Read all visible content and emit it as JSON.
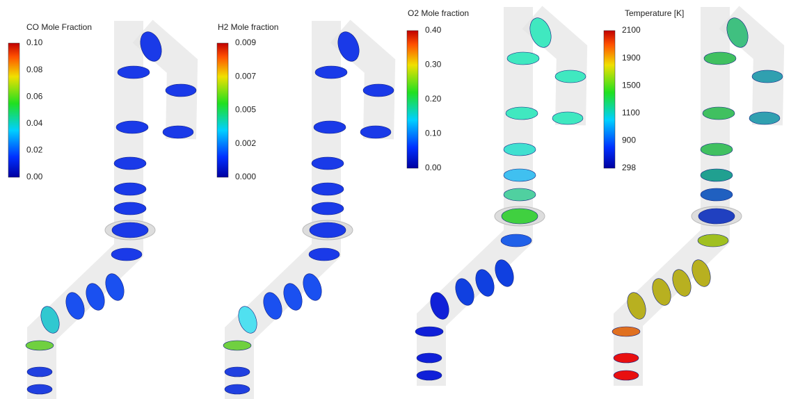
{
  "panels": [
    {
      "title": "CO Mole Fraction",
      "ticks": [
        "0.10",
        "0.08",
        "0.06",
        "0.04",
        "0.02",
        "0.00"
      ]
    },
    {
      "title": "H2 Mole fraction",
      "ticks": [
        "0.009",
        "0.007",
        "0.005",
        "0.002",
        "0.000"
      ]
    },
    {
      "title": "O2 Mole fraction",
      "ticks": [
        "0.40",
        "0.30",
        "0.20",
        "0.10",
        "0.00"
      ]
    },
    {
      "title": "Temperature [K]",
      "ticks": [
        "2100",
        "1900",
        "1500",
        "1100",
        "900",
        "298"
      ]
    }
  ]
}
